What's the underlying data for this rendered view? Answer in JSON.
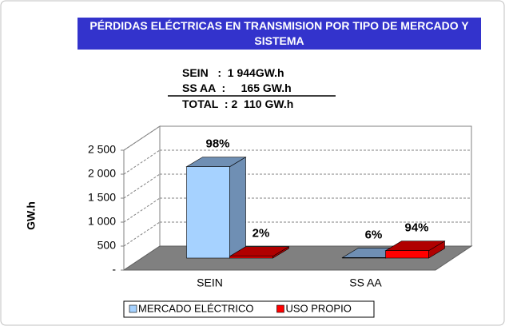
{
  "chart_data": {
    "type": "bar3d",
    "title": "PÉRDIDAS ELÉCTRICAS EN TRANSMISION POR TIPO DE MERCADO Y SISTEMA",
    "annotations": [
      "SEIN   :  1 944GW.h",
      "SS AA  :     165 GW.h",
      "TOTAL  : 2  110 GW.h"
    ],
    "y_label": "GW.h",
    "categories": [
      "SEIN",
      "SS AA"
    ],
    "series": [
      {
        "name": "MERCADO ELÉCTRICO",
        "color": "#a6d2ff",
        "side_color": "#6f8fb4",
        "values": [
          1906,
          10
        ],
        "share_labels": [
          "98%",
          "6%"
        ]
      },
      {
        "name": "USO PROPIO",
        "color": "#ff0000",
        "side_color": "#b00000",
        "values": [
          38,
          155
        ],
        "share_labels": [
          "2%",
          "94%"
        ]
      }
    ],
    "ylim": [
      0,
      2500
    ],
    "yticks": [
      {
        "value": 0,
        "label": "-"
      },
      500,
      {
        "value": 1000,
        "label": "1 000"
      },
      {
        "value": 1500,
        "label": "1 500"
      },
      {
        "value": 2000,
        "label": "2 000"
      },
      {
        "value": 2500,
        "label": "2 500"
      }
    ],
    "grid": true,
    "legend": "bottom"
  }
}
